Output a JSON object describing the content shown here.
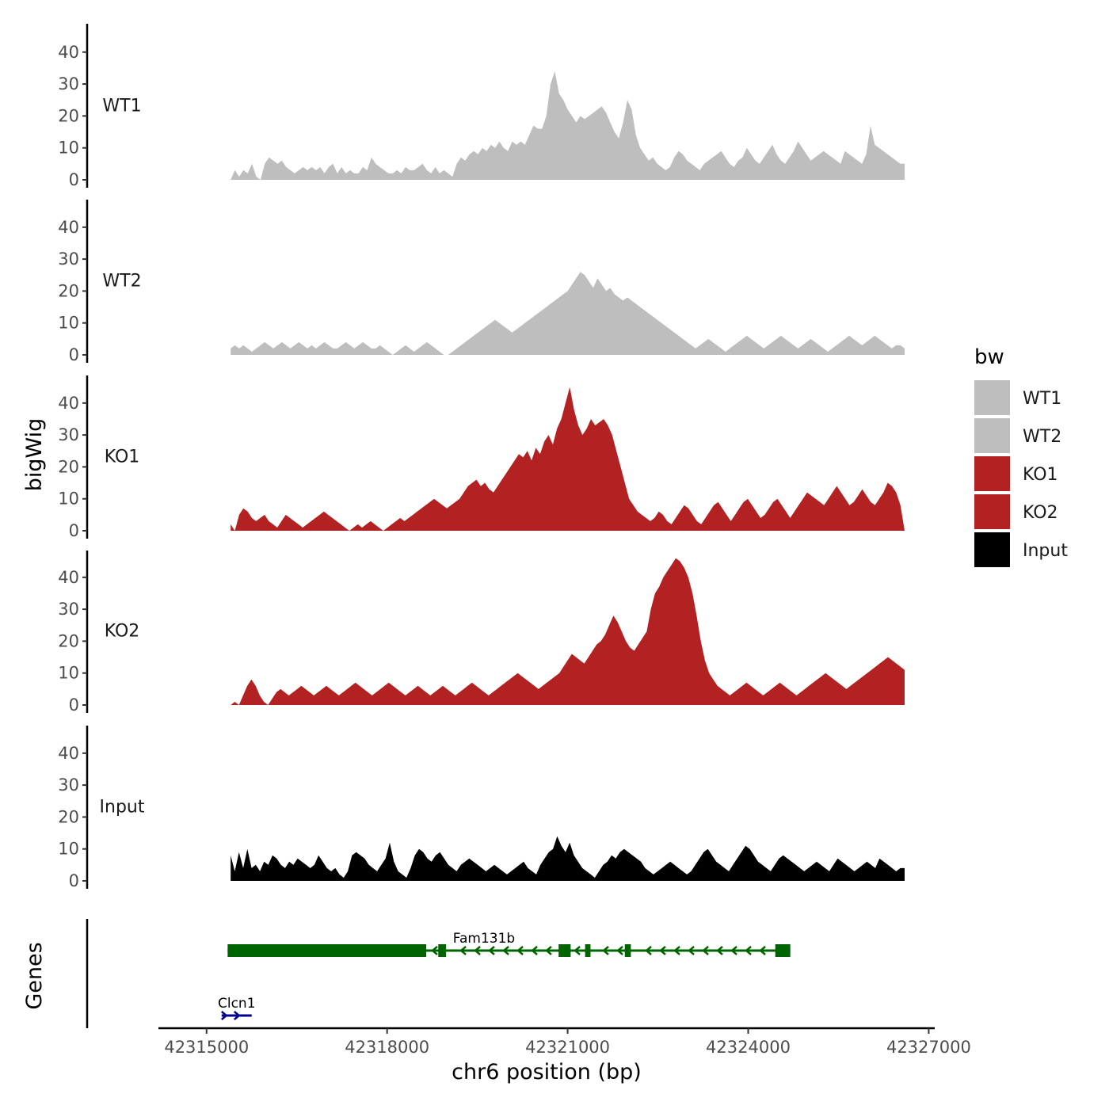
{
  "chart_data": {
    "type": "area",
    "chromosome": "chr6",
    "xlabel": "chr6 position (bp)",
    "ylabel": "bigWig",
    "genes_label": "Genes",
    "xlim": [
      42314200,
      42327100
    ],
    "x_ticks": [
      42315000,
      42318000,
      42321000,
      42324000,
      42327000
    ],
    "x_tick_labels": [
      "42315000",
      "42318000",
      "42321000",
      "42324000",
      "42327000"
    ],
    "ylim": [
      0,
      48
    ],
    "y_ticks": [
      0,
      10,
      20,
      30,
      40
    ],
    "y_tick_labels": [
      "0",
      "10",
      "20",
      "30",
      "40"
    ],
    "x_start": 42315400,
    "x_end": 42326600,
    "legend": {
      "title": "bw",
      "entries": [
        {
          "label": "WT1",
          "color": "#bebebe"
        },
        {
          "label": "WT2",
          "color": "#bebebe"
        },
        {
          "label": "KO1",
          "color": "#b22222"
        },
        {
          "label": "KO2",
          "color": "#b22222"
        },
        {
          "label": "Input",
          "color": "#000000"
        }
      ]
    },
    "series": [
      {
        "name": "WT1",
        "color": "#bebebe",
        "values": [
          0,
          3,
          1,
          3,
          2,
          5,
          1,
          0,
          5,
          7,
          6,
          5,
          6,
          4,
          3,
          2,
          3,
          4,
          3,
          4,
          3,
          4,
          2,
          4,
          5,
          2,
          4,
          2,
          3,
          2,
          2,
          4,
          3,
          7,
          5,
          4,
          3,
          2,
          2,
          3,
          2,
          4,
          3,
          3,
          4,
          5,
          3,
          2,
          4,
          2,
          3,
          2,
          1,
          5,
          7,
          6,
          8,
          9,
          8,
          10,
          9,
          11,
          10,
          12,
          10,
          9,
          12,
          11,
          12,
          11,
          14,
          17,
          16,
          16,
          20,
          30,
          34,
          27,
          25,
          22,
          20,
          18,
          20,
          19,
          20,
          21,
          22,
          23,
          21,
          18,
          15,
          13,
          18,
          25,
          22,
          14,
          10,
          8,
          6,
          7,
          5,
          4,
          3,
          4,
          7,
          9,
          8,
          6,
          5,
          4,
          3,
          5,
          6,
          7,
          8,
          9,
          7,
          5,
          4,
          6,
          7,
          10,
          8,
          6,
          5,
          7,
          9,
          11,
          8,
          6,
          5,
          7,
          9,
          12,
          10,
          8,
          6,
          7,
          8,
          9,
          8,
          7,
          6,
          5,
          9,
          8,
          7,
          6,
          5,
          8,
          17,
          11,
          10,
          9,
          8,
          7,
          6,
          5,
          5
        ]
      },
      {
        "name": "WT2",
        "color": "#bebebe",
        "values": [
          2,
          3,
          2,
          3,
          2,
          1,
          2,
          3,
          4,
          3,
          2,
          3,
          4,
          3,
          2,
          3,
          4,
          3,
          2,
          3,
          2,
          3,
          4,
          3,
          2,
          2,
          3,
          4,
          3,
          2,
          3,
          4,
          3,
          2,
          2,
          3,
          2,
          1,
          0,
          1,
          2,
          3,
          2,
          1,
          2,
          3,
          4,
          3,
          2,
          1,
          0,
          0,
          1,
          2,
          3,
          4,
          5,
          6,
          7,
          8,
          9,
          10,
          11,
          10,
          9,
          8,
          7,
          8,
          9,
          10,
          11,
          12,
          13,
          14,
          15,
          16,
          17,
          18,
          19,
          20,
          22,
          24,
          26,
          25,
          23,
          21,
          24,
          22,
          20,
          21,
          19,
          18,
          17,
          18,
          17,
          16,
          15,
          14,
          13,
          12,
          11,
          10,
          9,
          8,
          7,
          6,
          5,
          4,
          3,
          2,
          3,
          4,
          5,
          4,
          3,
          2,
          1,
          2,
          3,
          4,
          5,
          6,
          5,
          4,
          3,
          2,
          3,
          4,
          5,
          6,
          5,
          4,
          3,
          2,
          3,
          4,
          5,
          4,
          3,
          2,
          1,
          2,
          3,
          4,
          5,
          6,
          5,
          4,
          3,
          4,
          5,
          6,
          5,
          4,
          3,
          2,
          3,
          3,
          2
        ]
      },
      {
        "name": "KO1",
        "color": "#b22222",
        "values": [
          2,
          0,
          5,
          7,
          6,
          4,
          3,
          4,
          5,
          3,
          2,
          1,
          3,
          5,
          4,
          3,
          2,
          1,
          2,
          3,
          4,
          5,
          6,
          5,
          4,
          3,
          2,
          1,
          0,
          1,
          2,
          1,
          2,
          3,
          2,
          1,
          0,
          1,
          2,
          3,
          4,
          3,
          4,
          5,
          6,
          7,
          8,
          9,
          10,
          9,
          8,
          7,
          8,
          9,
          10,
          12,
          14,
          15,
          16,
          14,
          15,
          13,
          12,
          14,
          16,
          18,
          20,
          22,
          24,
          23,
          25,
          22,
          26,
          24,
          28,
          30,
          27,
          32,
          35,
          40,
          45,
          38,
          33,
          30,
          32,
          35,
          33,
          34,
          35,
          33,
          30,
          25,
          20,
          15,
          10,
          8,
          6,
          5,
          4,
          3,
          4,
          6,
          5,
          3,
          2,
          4,
          6,
          8,
          7,
          5,
          3,
          2,
          4,
          6,
          8,
          9,
          7,
          5,
          3,
          5,
          7,
          9,
          10,
          8,
          6,
          4,
          5,
          7,
          9,
          10,
          8,
          6,
          4,
          6,
          8,
          10,
          12,
          11,
          10,
          9,
          8,
          10,
          12,
          14,
          12,
          10,
          8,
          9,
          11,
          13,
          11,
          9,
          8,
          10,
          12,
          15,
          14,
          12,
          8,
          0
        ]
      },
      {
        "name": "KO2",
        "color": "#b22222",
        "values": [
          0,
          1,
          0,
          3,
          6,
          8,
          6,
          3,
          1,
          0,
          2,
          4,
          5,
          4,
          3,
          4,
          5,
          6,
          5,
          4,
          3,
          4,
          5,
          6,
          5,
          4,
          3,
          4,
          5,
          6,
          7,
          6,
          5,
          4,
          3,
          4,
          5,
          6,
          7,
          6,
          5,
          4,
          3,
          4,
          5,
          6,
          5,
          4,
          3,
          4,
          5,
          6,
          5,
          4,
          3,
          4,
          5,
          6,
          7,
          6,
          5,
          4,
          3,
          4,
          5,
          6,
          7,
          8,
          9,
          10,
          9,
          8,
          7,
          6,
          5,
          6,
          7,
          8,
          9,
          10,
          12,
          14,
          16,
          15,
          14,
          13,
          15,
          17,
          19,
          20,
          22,
          25,
          28,
          26,
          23,
          20,
          18,
          17,
          19,
          21,
          23,
          30,
          35,
          37,
          40,
          42,
          44,
          46,
          45,
          43,
          40,
          35,
          28,
          20,
          14,
          10,
          8,
          6,
          5,
          4,
          3,
          4,
          5,
          6,
          7,
          6,
          5,
          4,
          3,
          4,
          5,
          6,
          7,
          6,
          5,
          4,
          3,
          4,
          5,
          6,
          7,
          8,
          9,
          10,
          9,
          8,
          7,
          6,
          5,
          6,
          7,
          8,
          9,
          10,
          11,
          12,
          13,
          14,
          15,
          14,
          13,
          12,
          11
        ]
      },
      {
        "name": "Input",
        "color": "#000000",
        "values": [
          8,
          3,
          9,
          4,
          10,
          4,
          5,
          3,
          6,
          5,
          8,
          7,
          5,
          4,
          6,
          5,
          7,
          6,
          5,
          4,
          5,
          8,
          6,
          4,
          3,
          4,
          2,
          1,
          3,
          8,
          9,
          8,
          7,
          5,
          4,
          3,
          5,
          7,
          12,
          6,
          3,
          2,
          1,
          4,
          8,
          10,
          9,
          7,
          6,
          8,
          9,
          7,
          5,
          4,
          3,
          5,
          6,
          7,
          6,
          5,
          4,
          3,
          4,
          5,
          4,
          3,
          2,
          3,
          4,
          5,
          6,
          4,
          3,
          2,
          5,
          7,
          9,
          10,
          14,
          11,
          9,
          12,
          8,
          6,
          4,
          3,
          2,
          1,
          3,
          5,
          6,
          8,
          7,
          9,
          10,
          9,
          8,
          7,
          6,
          4,
          3,
          2,
          3,
          4,
          5,
          6,
          5,
          4,
          3,
          2,
          3,
          5,
          7,
          9,
          10,
          8,
          6,
          5,
          4,
          3,
          5,
          7,
          9,
          11,
          10,
          8,
          6,
          5,
          4,
          3,
          5,
          7,
          8,
          7,
          6,
          5,
          4,
          3,
          4,
          5,
          6,
          5,
          4,
          3,
          5,
          7,
          6,
          5,
          4,
          3,
          4,
          5,
          6,
          5,
          4,
          7,
          6,
          5,
          4,
          3,
          4,
          4
        ]
      }
    ],
    "genes": [
      {
        "name": "Fam131b",
        "strand": "-",
        "color": "#006400",
        "tx_start": 42315350,
        "tx_end": 42324700,
        "exons": [
          [
            42315350,
            42318650
          ],
          [
            42318850,
            42318980
          ],
          [
            42320850,
            42321050
          ],
          [
            42321290,
            42321380
          ],
          [
            42321950,
            42322050
          ],
          [
            42324450,
            42324700
          ]
        ]
      },
      {
        "name": "Clcn1",
        "strand": "+",
        "color": "#00008b",
        "tx_start": 42315250,
        "tx_end": 42315750,
        "exons": []
      }
    ]
  }
}
